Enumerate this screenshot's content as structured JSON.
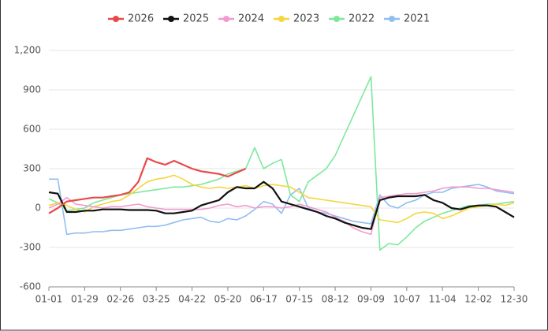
{
  "chart_data": {
    "type": "line",
    "categories": [
      "01-01",
      null,
      null,
      null,
      "01-29",
      null,
      null,
      null,
      "02-26",
      null,
      null,
      null,
      "03-25",
      null,
      null,
      null,
      "04-22",
      null,
      null,
      null,
      "05-20",
      null,
      null,
      null,
      "06-17",
      null,
      null,
      null,
      "07-15",
      null,
      null,
      null,
      "08-12",
      null,
      null,
      null,
      "09-09",
      null,
      null,
      null,
      "10-07",
      null,
      null,
      null,
      "11-04",
      null,
      null,
      null,
      "12-02",
      null,
      null,
      null,
      "12-30"
    ],
    "ylim": [
      -600,
      1200
    ],
    "yticks": [
      -600,
      -300,
      0,
      300,
      600,
      900,
      {
        "value": 1200,
        "label": "1,200"
      }
    ],
    "grid": true,
    "legend": "top",
    "series": [
      {
        "name": "2026",
        "color": "#e84a4a",
        "values": [
          -40,
          0,
          50,
          60,
          70,
          80,
          80,
          90,
          100,
          120,
          200,
          380,
          350,
          330,
          360,
          330,
          300,
          280,
          270,
          260,
          240,
          270,
          300,
          null,
          null,
          null,
          null,
          null,
          null,
          null,
          null,
          null,
          null,
          null,
          null,
          null,
          null,
          null,
          null,
          null,
          null,
          null,
          null,
          null,
          null,
          null,
          null,
          null,
          null,
          null,
          null,
          null,
          null
        ]
      },
      {
        "name": "2025",
        "color": "#111111",
        "values": [
          120,
          110,
          -30,
          -30,
          -20,
          -20,
          -10,
          -10,
          -10,
          -15,
          -15,
          -15,
          -20,
          -40,
          -40,
          -30,
          -20,
          20,
          40,
          60,
          120,
          160,
          150,
          150,
          200,
          150,
          50,
          30,
          10,
          -10,
          -30,
          -60,
          -80,
          -110,
          -130,
          -150,
          -160,
          60,
          80,
          90,
          90,
          90,
          100,
          60,
          40,
          0,
          -10,
          10,
          20,
          20,
          10,
          -30,
          -70
        ]
      },
      {
        "name": "2024",
        "color": "#f29bd0",
        "values": [
          0,
          30,
          80,
          30,
          20,
          10,
          0,
          10,
          10,
          20,
          30,
          10,
          0,
          -10,
          -10,
          -10,
          -10,
          -10,
          0,
          20,
          30,
          10,
          20,
          0,
          10,
          10,
          0,
          10,
          30,
          10,
          -10,
          -30,
          -70,
          -100,
          -150,
          -180,
          -200,
          80,
          90,
          100,
          110,
          110,
          120,
          130,
          150,
          160,
          160,
          160,
          150,
          150,
          140,
          130,
          120
        ]
      },
      {
        "name": "2023",
        "color": "#f5d63c",
        "values": [
          20,
          40,
          20,
          -10,
          -30,
          10,
          30,
          50,
          60,
          100,
          150,
          200,
          220,
          230,
          250,
          220,
          180,
          160,
          150,
          160,
          150,
          160,
          170,
          150,
          170,
          180,
          170,
          160,
          120,
          80,
          70,
          60,
          50,
          40,
          30,
          20,
          10,
          -90,
          -100,
          -110,
          -80,
          -40,
          -30,
          -40,
          -80,
          -60,
          -30,
          0,
          10,
          20,
          30,
          20,
          40
        ]
      },
      {
        "name": "2022",
        "color": "#7de89c",
        "values": [
          70,
          40,
          -20,
          -10,
          0,
          40,
          60,
          80,
          100,
          110,
          120,
          130,
          140,
          150,
          160,
          160,
          170,
          180,
          200,
          220,
          260,
          280,
          300,
          460,
          300,
          340,
          370,
          100,
          50,
          200,
          250,
          300,
          400,
          550,
          700,
          850,
          1000,
          -320,
          -270,
          -280,
          -220,
          -150,
          -100,
          -70,
          -40,
          -20,
          0,
          20,
          20,
          30,
          30,
          40,
          50
        ]
      },
      {
        "name": "2021",
        "color": "#8fbff0",
        "values": [
          220,
          220,
          -200,
          -190,
          -190,
          -180,
          -180,
          -170,
          -170,
          -160,
          -150,
          -140,
          -140,
          -130,
          -110,
          -90,
          -80,
          -70,
          -100,
          -110,
          -80,
          -90,
          -60,
          -10,
          50,
          30,
          -40,
          100,
          150,
          0,
          -30,
          -40,
          -60,
          -80,
          -100,
          -110,
          -120,
          100,
          20,
          0,
          40,
          60,
          100,
          120,
          120,
          150,
          160,
          170,
          180,
          160,
          130,
          120,
          110
        ]
      }
    ]
  }
}
